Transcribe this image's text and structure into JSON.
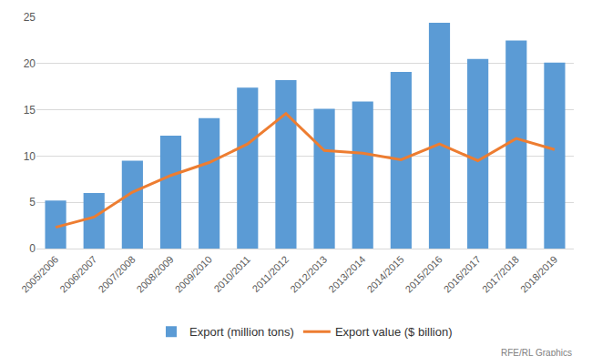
{
  "chart_data": {
    "type": "bar",
    "categories": [
      "2005/2006",
      "2006/2007",
      "2007/2008",
      "2008/2009",
      "2009/2010",
      "2010/2011",
      "2011/2012",
      "2012/2013",
      "2013/2014",
      "2014/2015",
      "2015/2016",
      "2016/2017",
      "2017/2018",
      "2018/2019"
    ],
    "series": [
      {
        "name": "Export (million tons)",
        "type": "bar",
        "color": "#5b9bd5",
        "values": [
          5.2,
          6.0,
          9.5,
          12.2,
          14.1,
          17.4,
          18.2,
          15.1,
          15.9,
          19.1,
          24.4,
          20.5,
          22.5,
          20.1
        ]
      },
      {
        "name": "Export value ($ billion)",
        "type": "line",
        "color": "#ed7d31",
        "values": [
          2.3,
          3.4,
          6.1,
          7.9,
          9.3,
          11.3,
          14.6,
          10.6,
          10.3,
          9.6,
          11.3,
          9.5,
          11.9,
          10.7
        ]
      }
    ],
    "ylim": [
      0,
      25
    ],
    "yticks": [
      0,
      5,
      10,
      15,
      20,
      25
    ],
    "grid": true,
    "legend": "bottom",
    "source": "RFE/RL Graphics"
  }
}
